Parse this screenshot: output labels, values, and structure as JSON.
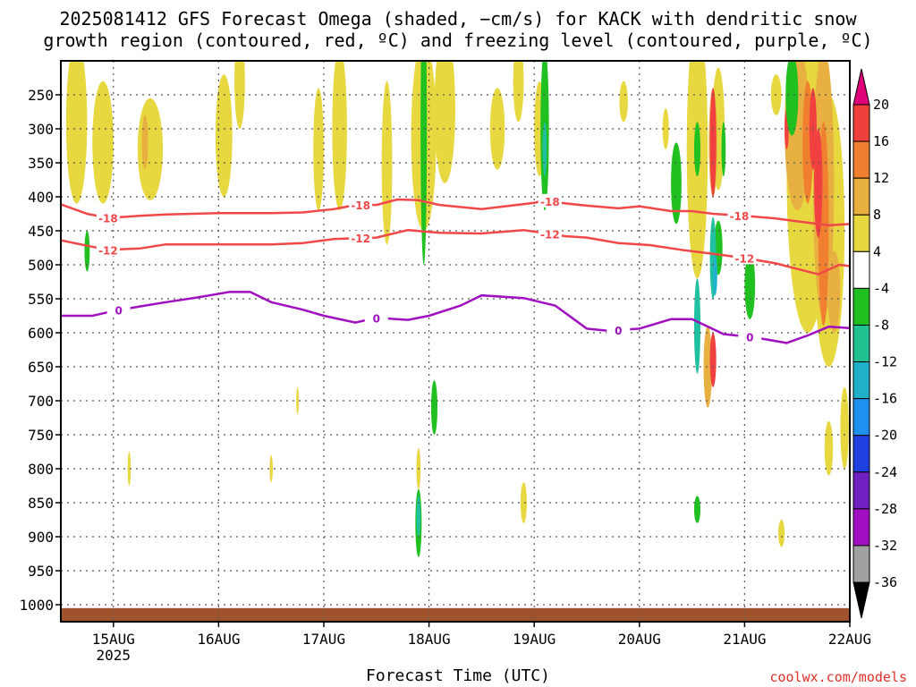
{
  "chart_data": {
    "type": "heatmap",
    "title_line1": "2025081412 GFS Forecast Omega (shaded, −cm/s) for KACK with dendritic snow",
    "title_line2": "growth region (contoured, red, ºC) and freezing level (contoured, purple, ºC)",
    "xlabel": "Forecast Time (UTC)",
    "credit": "coolwx.com/models",
    "x_ticks": [
      {
        "t": 0.5,
        "label": "15AUG",
        "sub": "2025"
      },
      {
        "t": 1.5,
        "label": "16AUG",
        "sub": ""
      },
      {
        "t": 2.5,
        "label": "17AUG",
        "sub": ""
      },
      {
        "t": 3.5,
        "label": "18AUG",
        "sub": ""
      },
      {
        "t": 4.5,
        "label": "19AUG",
        "sub": ""
      },
      {
        "t": 5.5,
        "label": "20AUG",
        "sub": ""
      },
      {
        "t": 6.5,
        "label": "21AUG",
        "sub": ""
      },
      {
        "t": 7.5,
        "label": "22AUG",
        "sub": ""
      }
    ],
    "x_range_days": [
      0,
      7.5
    ],
    "y_ticks": [
      250,
      300,
      350,
      400,
      450,
      500,
      550,
      600,
      650,
      700,
      750,
      800,
      850,
      900,
      950,
      1000
    ],
    "y_range_hpa": [
      200,
      1025
    ],
    "colorbar": {
      "levels": [
        "20",
        "16",
        "12",
        "8",
        "4",
        "-4",
        "-8",
        "-12",
        "-16",
        "-20",
        "-24",
        "-28",
        "-32",
        "-36"
      ],
      "colors": [
        "#e0007a",
        "#f0403c",
        "#f08030",
        "#e8b040",
        "#e8d840",
        "#ffffff",
        "#20c020",
        "#20c090",
        "#20b0c8",
        "#2090f0",
        "#2040e0",
        "#7020c0",
        "#a010c0",
        "#a0a0a0",
        "#000000"
      ]
    },
    "contours": {
      "dgz_minus18": {
        "label": "-18",
        "color": "#f04848",
        "points": [
          [
            0,
            411
          ],
          [
            0.25,
            425
          ],
          [
            0.45,
            431
          ],
          [
            0.75,
            428
          ],
          [
            1.0,
            426
          ],
          [
            1.5,
            424
          ],
          [
            2.0,
            424
          ],
          [
            2.3,
            423
          ],
          [
            2.6,
            418
          ],
          [
            2.8,
            412
          ],
          [
            3.0,
            412
          ],
          [
            3.2,
            404
          ],
          [
            3.4,
            405
          ],
          [
            3.6,
            412
          ],
          [
            4.0,
            418
          ],
          [
            4.5,
            409
          ],
          [
            4.6,
            405
          ],
          [
            4.75,
            409
          ],
          [
            5.0,
            413
          ],
          [
            5.3,
            417
          ],
          [
            5.5,
            414
          ],
          [
            5.8,
            421
          ],
          [
            6.0,
            421
          ],
          [
            6.2,
            425
          ],
          [
            6.5,
            428
          ],
          [
            6.8,
            432
          ],
          [
            7.1,
            438
          ],
          [
            7.3,
            442
          ],
          [
            7.5,
            440
          ]
        ]
      },
      "dgz_minus12": {
        "label": "-12",
        "color": "#f04848",
        "points": [
          [
            0,
            464
          ],
          [
            0.25,
            472
          ],
          [
            0.45,
            478
          ],
          [
            0.75,
            476
          ],
          [
            1.0,
            470
          ],
          [
            1.5,
            470
          ],
          [
            2.0,
            470
          ],
          [
            2.3,
            468
          ],
          [
            2.6,
            462
          ],
          [
            3.0,
            460
          ],
          [
            3.3,
            449
          ],
          [
            3.6,
            453
          ],
          [
            4.0,
            454
          ],
          [
            4.4,
            449
          ],
          [
            4.8,
            458
          ],
          [
            5.0,
            460
          ],
          [
            5.3,
            468
          ],
          [
            5.6,
            471
          ],
          [
            5.9,
            478
          ],
          [
            6.2,
            484
          ],
          [
            6.5,
            490
          ],
          [
            6.8,
            498
          ],
          [
            7.0,
            506
          ],
          [
            7.2,
            514
          ],
          [
            7.4,
            500
          ],
          [
            7.5,
            502
          ]
        ]
      },
      "freezing_level": {
        "label": "0",
        "color": "#a010c0",
        "points": [
          [
            0,
            575
          ],
          [
            0.3,
            575
          ],
          [
            0.5,
            568
          ],
          [
            0.8,
            560
          ],
          [
            1.0,
            555
          ],
          [
            1.3,
            548
          ],
          [
            1.6,
            540
          ],
          [
            1.8,
            540
          ],
          [
            2.0,
            555
          ],
          [
            2.3,
            566
          ],
          [
            2.5,
            575
          ],
          [
            2.8,
            585
          ],
          [
            3.0,
            578
          ],
          [
            3.3,
            581
          ],
          [
            3.5,
            575
          ],
          [
            3.8,
            560
          ],
          [
            4.0,
            545
          ],
          [
            4.4,
            549
          ],
          [
            4.7,
            560
          ],
          [
            5.0,
            594
          ],
          [
            5.2,
            597
          ],
          [
            5.5,
            594
          ],
          [
            5.8,
            580
          ],
          [
            6.0,
            580
          ],
          [
            6.3,
            602
          ],
          [
            6.6,
            607
          ],
          [
            6.9,
            615
          ],
          [
            7.1,
            604
          ],
          [
            7.3,
            591
          ],
          [
            7.5,
            593
          ]
        ]
      }
    }
  }
}
